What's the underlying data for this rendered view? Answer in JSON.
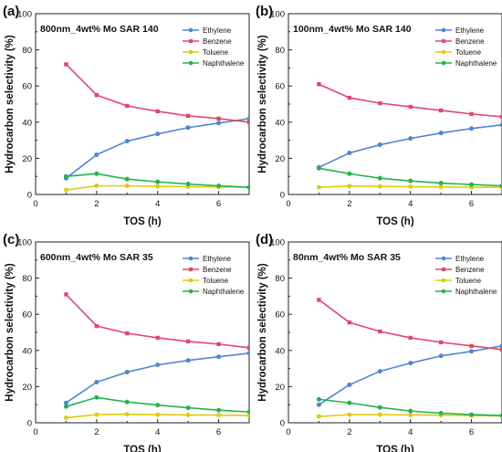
{
  "colors": {
    "Ethylene": "#4f86d4",
    "Benzene": "#e2466a",
    "Toluene": "#dccd0e",
    "Naphthalene": "#22b34e"
  },
  "chart_data": [
    {
      "type": "line",
      "panel_label": "(a)",
      "title": "800nm_4wt% Mo SAR 140",
      "xlabel": "TOS (h)",
      "ylabel": "Hydrocarbon selectivity (%)",
      "xlim": [
        0,
        7
      ],
      "ylim": [
        0,
        100
      ],
      "xticks": [
        0,
        2,
        4,
        6
      ],
      "yticks": [
        0,
        20,
        40,
        60,
        80,
        100
      ],
      "legend_position": "top-right",
      "x": [
        1,
        2,
        3,
        4,
        5,
        6,
        7
      ],
      "series": [
        {
          "name": "Ethylene",
          "values": [
            9,
            22,
            29.5,
            33.5,
            37,
            39.5,
            42
          ]
        },
        {
          "name": "Benzene",
          "values": [
            72,
            55,
            49,
            46,
            43.5,
            42,
            40
          ]
        },
        {
          "name": "Toluene",
          "values": [
            2.5,
            4.8,
            4.8,
            4.5,
            4.3,
            4.2,
            4
          ]
        },
        {
          "name": "Naphthalene",
          "values": [
            10,
            11.5,
            8.5,
            7,
            5.8,
            4.8,
            4
          ]
        }
      ]
    },
    {
      "type": "line",
      "panel_label": "(b)",
      "title": "100nm_4wt% Mo SAR 140",
      "xlabel": "TOS (h)",
      "ylabel": "Hydrocarbon selectivity (%)",
      "xlim": [
        0,
        7
      ],
      "ylim": [
        0,
        100
      ],
      "xticks": [
        0,
        2,
        4,
        6
      ],
      "yticks": [
        0,
        20,
        40,
        60,
        80,
        100
      ],
      "legend_position": "top-right",
      "x": [
        1,
        2,
        3,
        4,
        5,
        6,
        7
      ],
      "series": [
        {
          "name": "Ethylene",
          "values": [
            15,
            23,
            27.5,
            31,
            34,
            36.5,
            38.5
          ]
        },
        {
          "name": "Benzene",
          "values": [
            61,
            53.5,
            50.5,
            48.5,
            46.5,
            44.5,
            43
          ]
        },
        {
          "name": "Toluene",
          "values": [
            4,
            4.7,
            4.5,
            4.3,
            4.2,
            4,
            4
          ]
        },
        {
          "name": "Naphthalene",
          "values": [
            14.5,
            11.5,
            9,
            7.5,
            6.3,
            5.5,
            4.8
          ]
        }
      ]
    },
    {
      "type": "line",
      "panel_label": "(c)",
      "title": "600nm_4wt% Mo SAR 35",
      "xlabel": "TOS (h)",
      "ylabel": "Hydrocarbon selectivity (%)",
      "xlim": [
        0,
        7
      ],
      "ylim": [
        0,
        100
      ],
      "xticks": [
        0,
        2,
        4,
        6
      ],
      "yticks": [
        0,
        20,
        40,
        60,
        80,
        100
      ],
      "legend_position": "top-right",
      "x": [
        1,
        2,
        3,
        4,
        5,
        6,
        7
      ],
      "series": [
        {
          "name": "Ethylene",
          "values": [
            11,
            22.5,
            28,
            32,
            34.5,
            36.5,
            38.5
          ]
        },
        {
          "name": "Benzene",
          "values": [
            71,
            53.5,
            49.5,
            47,
            45,
            43.5,
            41.5
          ]
        },
        {
          "name": "Toluene",
          "values": [
            2.8,
            4.5,
            4.7,
            4.5,
            4.3,
            4.2,
            4
          ]
        },
        {
          "name": "Naphthalene",
          "values": [
            9,
            14,
            11.5,
            9.8,
            8.3,
            7,
            6
          ]
        }
      ]
    },
    {
      "type": "line",
      "panel_label": "(d)",
      "title": "80nm_4wt% Mo SAR 35",
      "xlabel": "TOS (h)",
      "ylabel": "Hydrocarbon selectivity (%)",
      "xlim": [
        0,
        7
      ],
      "ylim": [
        0,
        100
      ],
      "xticks": [
        0,
        2,
        4,
        6
      ],
      "yticks": [
        0,
        20,
        40,
        60,
        80,
        100
      ],
      "legend_position": "top-right",
      "x": [
        1,
        2,
        3,
        4,
        5,
        6,
        7
      ],
      "series": [
        {
          "name": "Ethylene",
          "values": [
            10,
            21,
            28.5,
            33,
            37,
            39.5,
            42.5
          ]
        },
        {
          "name": "Benzene",
          "values": [
            68,
            55.5,
            50.5,
            47,
            44.5,
            42.5,
            40.5
          ]
        },
        {
          "name": "Toluene",
          "values": [
            3.5,
            4.5,
            4.5,
            4.3,
            4.2,
            4,
            3.8
          ]
        },
        {
          "name": "Naphthalene",
          "values": [
            13,
            11,
            8.5,
            6.5,
            5.3,
            4.5,
            4
          ]
        }
      ]
    }
  ]
}
